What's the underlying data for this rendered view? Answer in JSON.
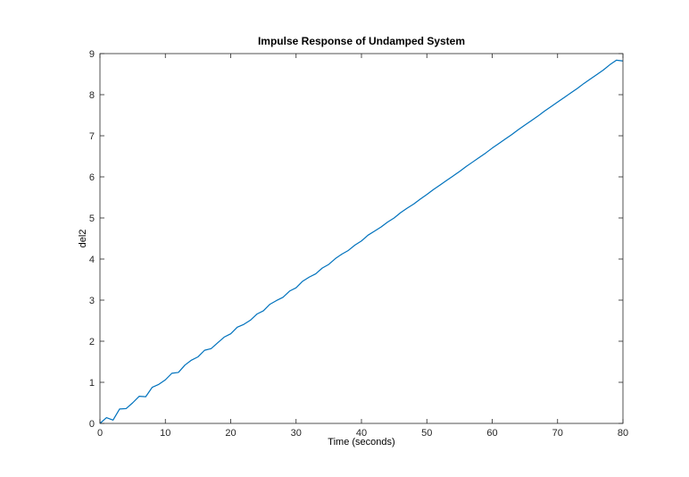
{
  "chart_data": {
    "type": "line",
    "title": "Impulse Response of Undamped System",
    "xlabel": "Time (seconds)",
    "ylabel": "del2",
    "xlim": [
      0,
      80
    ],
    "ylim": [
      0,
      9
    ],
    "xticks": [
      0,
      10,
      20,
      30,
      40,
      50,
      60,
      70,
      80
    ],
    "yticks": [
      0,
      1,
      2,
      3,
      4,
      5,
      6,
      7,
      8,
      9
    ],
    "grid": false,
    "legend": "none",
    "series": [
      {
        "color": "#0072BD",
        "x": [
          0,
          1,
          2,
          3,
          4,
          5,
          6,
          7,
          8,
          9,
          10,
          11,
          12,
          13,
          14,
          15,
          16,
          17,
          18,
          19,
          20,
          21,
          22,
          23,
          24,
          25,
          26,
          27,
          28,
          29,
          30,
          31,
          32,
          33,
          34,
          35,
          36,
          37,
          38,
          39,
          40,
          41,
          42,
          43,
          44,
          45,
          46,
          47,
          48,
          49,
          50,
          51,
          52,
          53,
          54,
          55,
          56,
          57,
          58,
          59,
          60,
          61,
          62,
          63,
          64,
          65,
          66,
          67,
          68,
          69,
          70,
          71,
          72,
          73,
          74,
          75,
          76,
          77,
          78,
          79,
          80
        ],
        "y": [
          0.0,
          0.14,
          0.08,
          0.35,
          0.36,
          0.5,
          0.66,
          0.65,
          0.88,
          0.95,
          1.06,
          1.22,
          1.24,
          1.42,
          1.54,
          1.62,
          1.78,
          1.82,
          1.96,
          2.1,
          2.18,
          2.34,
          2.41,
          2.51,
          2.66,
          2.74,
          2.9,
          2.99,
          3.07,
          3.22,
          3.3,
          3.46,
          3.56,
          3.64,
          3.78,
          3.87,
          4.01,
          4.12,
          4.21,
          4.34,
          4.44,
          4.58,
          4.68,
          4.78,
          4.9,
          5.0,
          5.13,
          5.24,
          5.34,
          5.46,
          5.57,
          5.69,
          5.8,
          5.91,
          6.02,
          6.13,
          6.25,
          6.36,
          6.47,
          6.58,
          6.7,
          6.81,
          6.92,
          7.03,
          7.15,
          7.26,
          7.37,
          7.48,
          7.6,
          7.71,
          7.82,
          7.93,
          8.04,
          8.15,
          8.27,
          8.38,
          8.49,
          8.6,
          8.73,
          8.84,
          8.82
        ]
      }
    ]
  }
}
